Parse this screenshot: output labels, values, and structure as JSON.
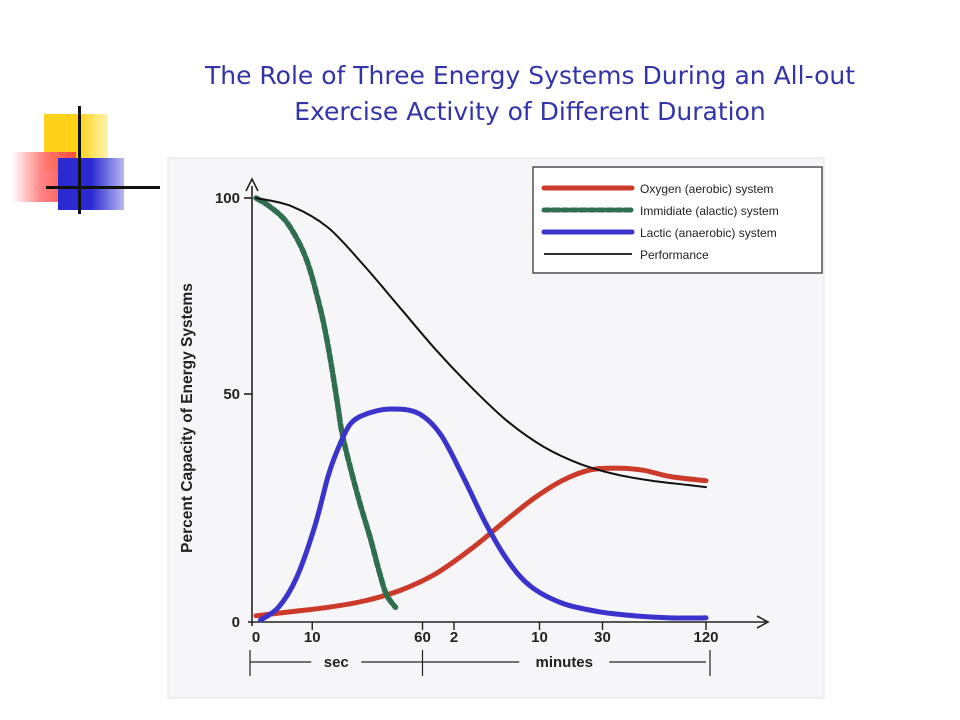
{
  "slide": {
    "title_line1": "The Role of Three Energy Systems During an All-out",
    "title_line2": "Exercise Activity of Different Duration"
  },
  "colors": {
    "title": "#3333aa",
    "deco_yellow": "#ffd21a",
    "deco_red": "#ff4a4a",
    "deco_blue": "#2a2ad0",
    "oxygen": "#cc3a2a",
    "immediate": "#2f6e4e",
    "lactic": "#3a33cc",
    "performance": "#111111"
  },
  "chart_data": {
    "type": "line",
    "title": "",
    "ylabel": "Percent Capacity of Energy Systems",
    "ylim": [
      0,
      100
    ],
    "y_ticks": [
      "0",
      "50",
      "100"
    ],
    "x_scale": "piecewise: seconds (0–60) then minutes (2–120)",
    "x_ticks": [
      {
        "label": "0",
        "pos": 0
      },
      {
        "label": "10",
        "pos": 12.5
      },
      {
        "label": "60",
        "pos": 37
      },
      {
        "label": "2",
        "pos": 44
      },
      {
        "label": "10",
        "pos": 63
      },
      {
        "label": "30",
        "pos": 77
      },
      {
        "label": "120",
        "pos": 100
      }
    ],
    "x_groups": [
      {
        "label": "sec",
        "from": 0,
        "to": 37
      },
      {
        "label": "minutes",
        "from": 37,
        "to": 100
      }
    ],
    "legend_position": "top-right",
    "series": [
      {
        "name": "Oxygen (aerobic) system",
        "key": "oxygen",
        "points": [
          [
            0,
            1
          ],
          [
            8,
            2
          ],
          [
            16,
            3
          ],
          [
            24,
            4.5
          ],
          [
            32,
            7
          ],
          [
            40,
            11
          ],
          [
            48,
            17
          ],
          [
            56,
            24
          ],
          [
            62,
            29
          ],
          [
            68,
            33
          ],
          [
            74,
            35.5
          ],
          [
            80,
            36
          ],
          [
            86,
            35.5
          ],
          [
            92,
            34
          ],
          [
            100,
            33
          ]
        ]
      },
      {
        "name": "Immidiate (alactic) system",
        "key": "immediate",
        "points": [
          [
            0,
            100
          ],
          [
            3,
            98
          ],
          [
            7,
            94
          ],
          [
            11,
            86
          ],
          [
            14,
            75
          ],
          [
            16,
            65
          ],
          [
            18,
            52
          ],
          [
            19,
            45
          ],
          [
            20.5,
            38
          ],
          [
            23,
            28
          ],
          [
            25.5,
            19
          ],
          [
            27.5,
            11
          ],
          [
            29,
            6
          ],
          [
            31,
            3
          ]
        ]
      },
      {
        "name": "Lactic (anaerobic) system",
        "key": "lactic",
        "points": [
          [
            1,
            0
          ],
          [
            5,
            3
          ],
          [
            9,
            10
          ],
          [
            13,
            22
          ],
          [
            16,
            34
          ],
          [
            18,
            40
          ],
          [
            21,
            46.5
          ],
          [
            25,
            49
          ],
          [
            30,
            50
          ],
          [
            36,
            49
          ],
          [
            41,
            44
          ],
          [
            46,
            34
          ],
          [
            51,
            23
          ],
          [
            56,
            14
          ],
          [
            61,
            8
          ],
          [
            68,
            4
          ],
          [
            76,
            2
          ],
          [
            84,
            1
          ],
          [
            92,
            0.5
          ],
          [
            100,
            0.5
          ]
        ]
      },
      {
        "name": "Performance",
        "key": "performance",
        "points": [
          [
            0,
            100
          ],
          [
            8,
            98
          ],
          [
            16,
            93
          ],
          [
            24,
            84
          ],
          [
            32,
            74
          ],
          [
            40,
            64
          ],
          [
            48,
            55
          ],
          [
            56,
            47
          ],
          [
            64,
            41
          ],
          [
            72,
            37
          ],
          [
            80,
            34.5
          ],
          [
            88,
            33
          ],
          [
            96,
            32
          ],
          [
            100,
            31.5
          ]
        ]
      }
    ]
  }
}
